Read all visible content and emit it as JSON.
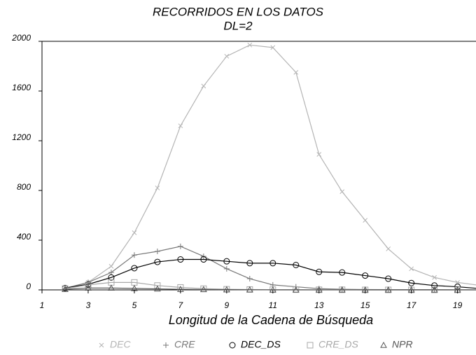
{
  "chart_data": {
    "type": "line",
    "title": "RECORRIDOS EN LOS DATOS",
    "subtitle": "DL=2",
    "x_label": "Longitud de la Cadena de Búsqueda",
    "x": [
      2,
      3,
      4,
      5,
      6,
      7,
      8,
      9,
      10,
      11,
      12,
      13,
      14,
      15,
      16,
      17,
      18,
      19,
      20
    ],
    "xlim": [
      1,
      19.8
    ],
    "xticks": [
      1,
      3,
      5,
      7,
      9,
      11,
      13,
      15,
      17,
      19
    ],
    "ylim": [
      0,
      2000
    ],
    "yticks": [
      0,
      400,
      800,
      1200,
      1600,
      2000
    ],
    "series": [
      {
        "name": "DEC",
        "color": "#b4b4b4",
        "marker": "x",
        "values": [
          15,
          60,
          190,
          460,
          820,
          1320,
          1640,
          1880,
          1970,
          1950,
          1750,
          1090,
          790,
          560,
          330,
          170,
          100,
          60,
          35
        ]
      },
      {
        "name": "CRE",
        "color": "#777777",
        "marker": "plus",
        "values": [
          10,
          60,
          140,
          280,
          310,
          350,
          270,
          170,
          90,
          40,
          25,
          10,
          5,
          3,
          2,
          2,
          2,
          1,
          1
        ]
      },
      {
        "name": "DEC_DS",
        "color": "#000000",
        "marker": "circle",
        "values": [
          15,
          45,
          100,
          175,
          225,
          245,
          245,
          230,
          215,
          215,
          200,
          145,
          140,
          115,
          90,
          55,
          35,
          25,
          10
        ]
      },
      {
        "name": "CRE_DS",
        "color": "#a8a8a8",
        "marker": "square",
        "values": [
          10,
          40,
          60,
          60,
          35,
          20,
          10,
          5,
          3,
          2,
          2,
          1,
          1,
          0,
          0,
          0,
          0,
          0,
          0
        ]
      },
      {
        "name": "NPR",
        "color": "#555555",
        "marker": "triangle",
        "values": [
          5,
          15,
          15,
          12,
          8,
          5,
          3,
          2,
          1,
          0,
          0,
          0,
          0,
          0,
          0,
          0,
          0,
          0,
          0
        ]
      }
    ]
  }
}
